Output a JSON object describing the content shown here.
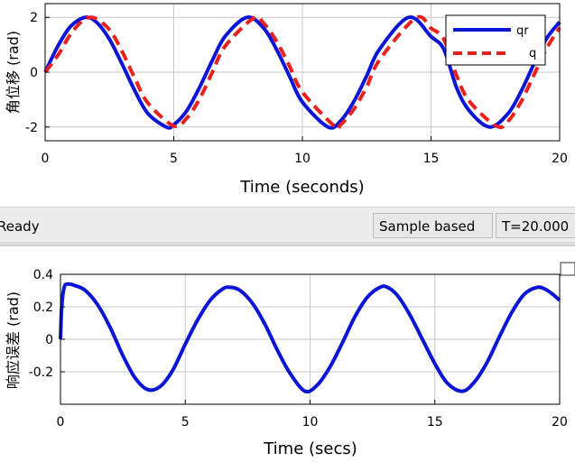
{
  "chart_data": [
    {
      "type": "line",
      "title": "",
      "xlabel": "Time (seconds)",
      "ylabel": "角位移 (rad)",
      "xlim": [
        0,
        20
      ],
      "ylim": [
        -2.5,
        2.5
      ],
      "xticks": [
        "0",
        "5",
        "10",
        "15",
        "20"
      ],
      "yticks": [
        "2",
        "0",
        "-2"
      ],
      "grid": true,
      "legend": "top-right",
      "series": [
        {
          "name": "qr",
          "color": "#0b15d6",
          "style": "solid",
          "x": [
            0,
            0.5,
            1,
            1.57,
            2,
            2.5,
            3,
            3.5,
            4,
            4.71,
            5,
            5.5,
            6,
            6.5,
            7,
            7.85,
            8.5,
            9,
            9.5,
            10,
            11,
            11.5,
            12,
            12.5,
            13,
            14.14,
            15,
            15.5,
            16,
            16.5,
            17.28,
            18,
            18.5,
            19,
            19.5,
            20
          ],
          "y": [
            0,
            0.96,
            1.68,
            2.0,
            1.82,
            1.2,
            0.28,
            -0.7,
            -1.51,
            -2.0,
            -1.92,
            -1.41,
            -0.56,
            0.43,
            1.31,
            2.0,
            1.6,
            0.82,
            -0.15,
            -1.09,
            -2.0,
            -1.76,
            -1.07,
            -0.13,
            0.84,
            2.0,
            1.3,
            0.83,
            -0.58,
            -1.42,
            -2.0,
            -1.5,
            -0.7,
            0.3,
            1.24,
            1.83
          ]
        },
        {
          "name": "q",
          "color": "#e8211c",
          "style": "dashed",
          "x": [
            0,
            0.5,
            1,
            1.5,
            1.9,
            2.5,
            3,
            3.5,
            4,
            5.0,
            5.5,
            6,
            6.5,
            7,
            8.1,
            8.5,
            9,
            9.5,
            10,
            11.25,
            11.5,
            12,
            12.5,
            13,
            14.4,
            15,
            15.5,
            16,
            16.5,
            17.55,
            18,
            18.5,
            19,
            19.5,
            20
          ],
          "y": [
            0,
            0.62,
            1.4,
            1.9,
            1.98,
            1.55,
            0.74,
            -0.25,
            -1.13,
            -1.96,
            -1.68,
            -0.98,
            0.0,
            0.95,
            1.97,
            1.78,
            1.12,
            0.22,
            -0.72,
            -1.97,
            -1.9,
            -1.35,
            -0.53,
            0.45,
            1.97,
            1.6,
            1.2,
            -0.14,
            -1.07,
            -1.97,
            -1.78,
            -1.08,
            -0.1,
            0.88,
            1.62
          ]
        }
      ]
    },
    {
      "type": "line",
      "title": "",
      "xlabel": "Time (secs)",
      "ylabel": "响应误差 (rad)",
      "xlim": [
        0,
        20
      ],
      "ylim": [
        -0.4,
        0.4
      ],
      "xticks": [
        "0",
        "5",
        "10",
        "15",
        "20"
      ],
      "yticks": [
        "0.4",
        "0.2",
        "0",
        "-0.2"
      ],
      "grid": true,
      "series": [
        {
          "color": "#0b15d6",
          "style": "solid",
          "x": [
            0,
            0.05,
            0.15,
            0.3,
            0.6,
            1,
            1.5,
            2,
            2.5,
            3,
            3.5,
            4,
            4.5,
            5,
            5.5,
            6,
            6.5,
            6.8,
            7.2,
            7.7,
            8.2,
            8.7,
            9.2,
            9.8,
            10.3,
            10.8,
            11.3,
            11.8,
            12.3,
            12.8,
            13.1,
            13.5,
            14,
            14.5,
            15,
            15.5,
            16.1,
            16.6,
            17.1,
            17.6,
            18.1,
            18.6,
            19.1,
            19.4,
            19.7,
            20
          ],
          "y": [
            0,
            0.2,
            0.32,
            0.34,
            0.33,
            0.3,
            0.21,
            0.07,
            -0.1,
            -0.24,
            -0.31,
            -0.29,
            -0.19,
            -0.03,
            0.12,
            0.24,
            0.31,
            0.32,
            0.3,
            0.22,
            0.09,
            -0.07,
            -0.21,
            -0.32,
            -0.28,
            -0.17,
            -0.02,
            0.14,
            0.26,
            0.32,
            0.32,
            0.27,
            0.15,
            0.0,
            -0.15,
            -0.27,
            -0.32,
            -0.26,
            -0.14,
            0.02,
            0.17,
            0.28,
            0.32,
            0.31,
            0.28,
            0.24
          ]
        }
      ]
    }
  ],
  "legend": {
    "items": [
      "qr",
      "q"
    ]
  },
  "status": {
    "ready": "Ready",
    "mode": "Sample based",
    "time": "T=20.000"
  }
}
